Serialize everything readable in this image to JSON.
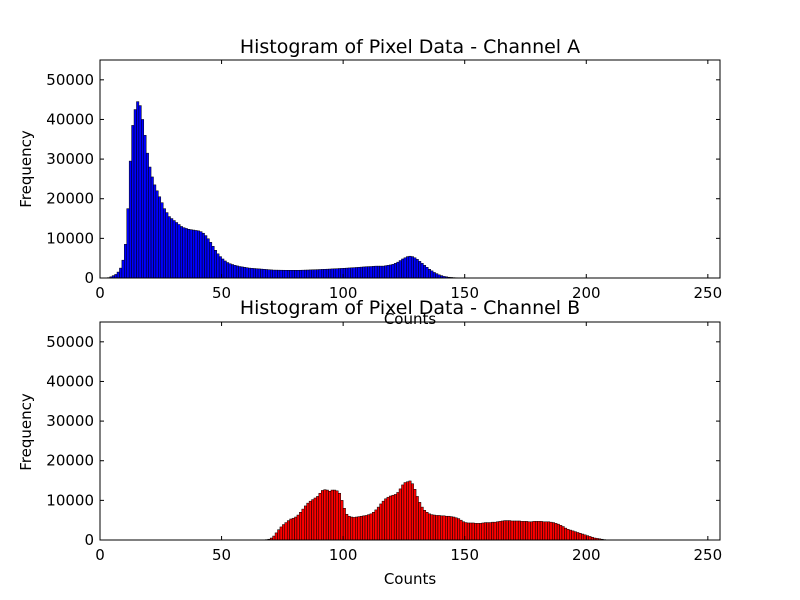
{
  "figure": {
    "background": "#ffffff"
  },
  "chart_data": [
    {
      "type": "bar",
      "title": "Histogram of Pixel Data - Channel A",
      "xlabel": "Counts",
      "ylabel": "Frequency",
      "xlim": [
        0,
        255
      ],
      "ylim": [
        0,
        55000
      ],
      "xticks": [
        0,
        50,
        100,
        150,
        200,
        250
      ],
      "yticks": [
        0,
        10000,
        20000,
        30000,
        40000,
        50000
      ],
      "grid": false,
      "bar_color": "#0000ff",
      "edge_color": "#000000",
      "bin_width": 1,
      "x_start": 0,
      "values": [
        0,
        0,
        0,
        100,
        300,
        600,
        900,
        1500,
        2500,
        4500,
        8500,
        17500,
        29500,
        38500,
        42500,
        44500,
        43500,
        40000,
        36000,
        31500,
        28000,
        25500,
        23500,
        22000,
        20500,
        19000,
        17500,
        16500,
        15500,
        15000,
        14500,
        14000,
        13500,
        13000,
        12700,
        12500,
        12300,
        12200,
        12100,
        12000,
        11900,
        11700,
        11300,
        10700,
        9900,
        9000,
        8000,
        7000,
        6100,
        5400,
        4800,
        4300,
        3900,
        3600,
        3400,
        3200,
        3050,
        2900,
        2800,
        2700,
        2600,
        2500,
        2450,
        2400,
        2350,
        2300,
        2250,
        2200,
        2150,
        2100,
        2050,
        2000,
        1990,
        1980,
        1970,
        1960,
        1950,
        1950,
        1950,
        1950,
        1950,
        1950,
        1960,
        1980,
        2000,
        2020,
        2050,
        2080,
        2100,
        2120,
        2150,
        2180,
        2200,
        2230,
        2260,
        2300,
        2330,
        2360,
        2400,
        2430,
        2460,
        2500,
        2540,
        2580,
        2620,
        2660,
        2700,
        2750,
        2800,
        2850,
        2880,
        2900,
        2950,
        3000,
        3000,
        3000,
        3000,
        3100,
        3200,
        3300,
        3450,
        3700,
        4000,
        4400,
        4800,
        5100,
        5400,
        5500,
        5400,
        5100,
        4700,
        4200,
        3700,
        3200,
        2700,
        2200,
        1800,
        1400,
        1100,
        800,
        600,
        400,
        300,
        200,
        150,
        100,
        70,
        40,
        20,
        10,
        5,
        0
      ]
    },
    {
      "type": "bar",
      "title": "Histogram of Pixel Data - Channel B",
      "xlabel": "Counts",
      "ylabel": "Frequency",
      "xlim": [
        0,
        255
      ],
      "ylim": [
        0,
        55000
      ],
      "xticks": [
        0,
        50,
        100,
        150,
        200,
        250
      ],
      "yticks": [
        0,
        10000,
        20000,
        30000,
        40000,
        50000
      ],
      "grid": false,
      "bar_color": "#ff0000",
      "edge_color": "#000000",
      "bin_width": 1,
      "x_start": 68,
      "values": [
        100,
        200,
        500,
        1000,
        1800,
        2600,
        3300,
        3900,
        4400,
        4900,
        5300,
        5500,
        5800,
        6300,
        7000,
        7800,
        8600,
        9300,
        9800,
        10200,
        10600,
        11000,
        11800,
        12500,
        12700,
        12600,
        12300,
        12600,
        12600,
        12400,
        11800,
        10000,
        8000,
        6500,
        6000,
        5800,
        5700,
        5800,
        5900,
        6000,
        6100,
        6200,
        6400,
        6600,
        7000,
        7600,
        8300,
        9100,
        9800,
        10400,
        10800,
        11100,
        11300,
        11500,
        12000,
        12900,
        13900,
        14500,
        14700,
        14900,
        14200,
        12800,
        11000,
        9500,
        8300,
        7500,
        7000,
        6600,
        6400,
        6300,
        6200,
        6200,
        6100,
        6100,
        6000,
        6000,
        5900,
        5800,
        5600,
        5400,
        5000,
        4600,
        4400,
        4300,
        4300,
        4300,
        4200,
        4200,
        4200,
        4300,
        4400,
        4400,
        4400,
        4500,
        4500,
        4600,
        4700,
        4800,
        4900,
        4900,
        4900,
        4800,
        4800,
        4800,
        4800,
        4700,
        4700,
        4700,
        4600,
        4600,
        4700,
        4700,
        4700,
        4700,
        4600,
        4600,
        4600,
        4500,
        4400,
        4200,
        4000,
        3700,
        3400,
        3000,
        2700,
        2500,
        2300,
        2100,
        1900,
        1700,
        1500,
        1300,
        1100,
        900,
        700,
        500,
        400,
        300,
        200,
        100,
        50,
        20,
        10,
        0
      ]
    }
  ]
}
